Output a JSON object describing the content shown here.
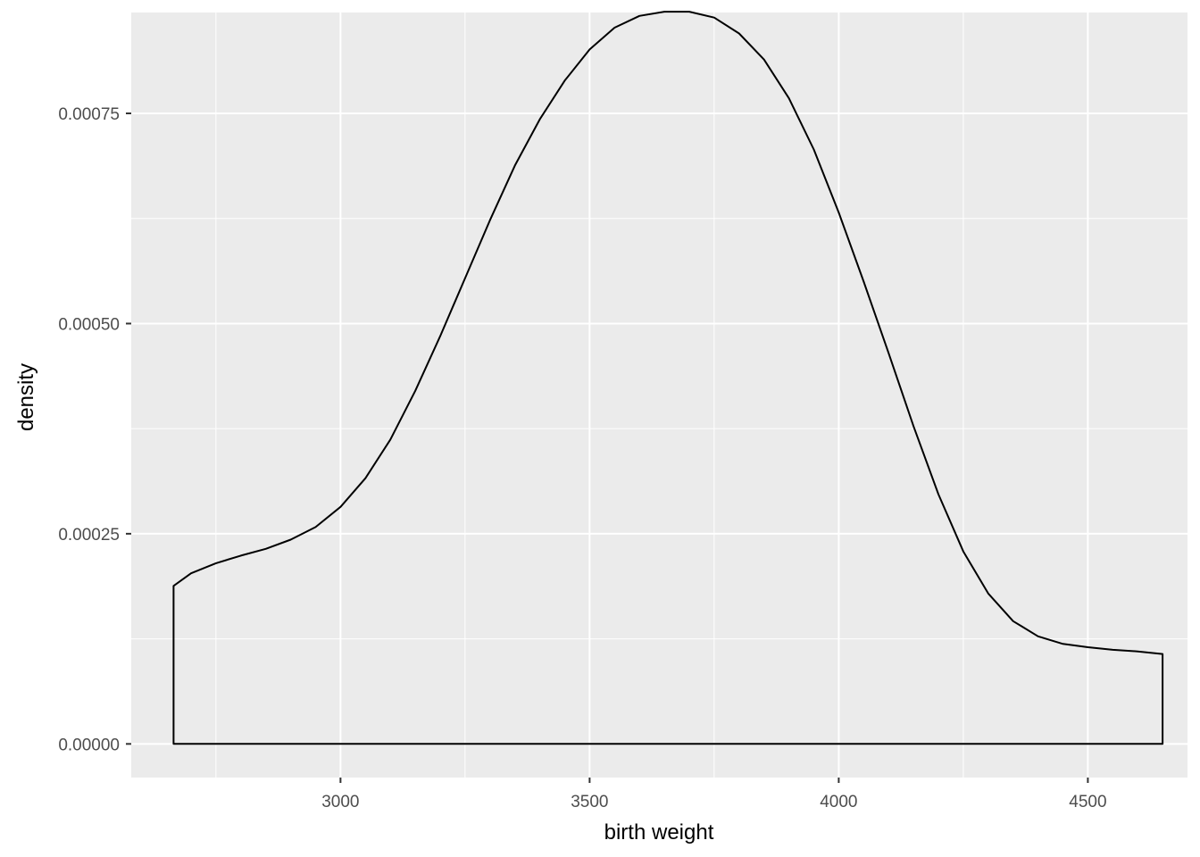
{
  "chart_data": {
    "type": "area",
    "xlabel": "birth weight",
    "ylabel": "density",
    "xlim": [
      2580,
      4700
    ],
    "ylim": [
      -4e-05,
      0.00087
    ],
    "x_ticks": [
      3000,
      3500,
      4000,
      4500
    ],
    "x_tick_labels": [
      "3000",
      "3500",
      "4000",
      "4500"
    ],
    "x_minor": [
      2750,
      3250,
      3750,
      4250
    ],
    "y_ticks": [
      0,
      0.00025,
      0.0005,
      0.00075
    ],
    "y_tick_labels": [
      "0.00000",
      "0.00025",
      "0.00050",
      "0.00075"
    ],
    "y_minor": [
      0.000125,
      0.000375,
      0.000625,
      0.000875
    ],
    "grid": true,
    "colors": {
      "panel": "#ebebeb",
      "grid": "#ffffff",
      "line": "#000000",
      "fill": "none"
    },
    "series": [
      {
        "x": [
          2665,
          2700,
          2750,
          2800,
          2850,
          2900,
          2950,
          3000,
          3050,
          3100,
          3150,
          3200,
          3250,
          3300,
          3350,
          3400,
          3450,
          3500,
          3550,
          3600,
          3650,
          3700,
          3750,
          3800,
          3850,
          3900,
          3950,
          4000,
          4050,
          4100,
          4150,
          4200,
          4250,
          4300,
          4350,
          4400,
          4450,
          4500,
          4550,
          4600,
          4650
        ],
        "y": [
          0.000188,
          0.000203,
          0.000215,
          0.000224,
          0.000232,
          0.000243,
          0.000258,
          0.000282,
          0.000316,
          0.000362,
          0.00042,
          0.000485,
          0.000554,
          0.000623,
          0.000688,
          0.000743,
          0.000789,
          0.000826,
          0.000852,
          0.000866,
          0.000871,
          0.000871,
          0.000864,
          0.000845,
          0.000814,
          0.000768,
          0.000707,
          0.000632,
          0.00055,
          0.000465,
          0.000378,
          0.000297,
          0.000229,
          0.000179,
          0.000146,
          0.000128,
          0.000119,
          0.000115,
          0.000112,
          0.00011,
          0.000107
        ]
      }
    ]
  }
}
